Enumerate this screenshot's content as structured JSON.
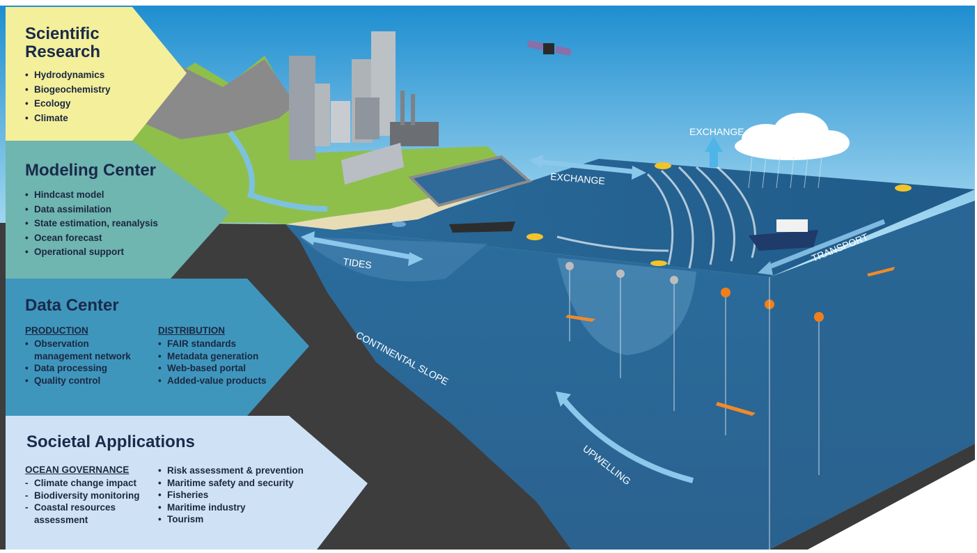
{
  "panels": {
    "scientific_research": {
      "title_line1": "Scientific",
      "title_line2": "Research",
      "items": [
        "Hydrodynamics",
        "Biogeochemistry",
        "Ecology",
        "Climate"
      ]
    },
    "modeling_center": {
      "title": "Modeling Center",
      "items": [
        "Hindcast model",
        "Data assimilation",
        "State estimation, reanalysis",
        "Ocean forecast",
        "Operational support"
      ]
    },
    "data_center": {
      "title": "Data Center",
      "production": {
        "heading": "PRODUCTION",
        "items": [
          "Observation management network",
          "Data processing",
          "Quality control"
        ]
      },
      "distribution": {
        "heading": "DISTRIBUTION",
        "items": [
          "FAIR standards",
          "Metadata generation",
          "Web-based portal",
          "Added-value products"
        ]
      }
    },
    "societal_applications": {
      "title": "Societal Applications",
      "ocean_governance": {
        "heading": "OCEAN GOVERNANCE",
        "items": [
          "Climate change impact",
          "Biodiversity monitoring",
          "Coastal resources assessment"
        ]
      },
      "other": {
        "items": [
          "Risk assessment  & prevention",
          "Maritime safety and security",
          "Fisheries",
          "Maritime industry",
          "Tourism"
        ]
      }
    }
  },
  "diagram_labels": {
    "exchange_top": "EXCHANGE",
    "exchange_mid": "EXCHANGE",
    "tides": "TIDES",
    "transport": "TRANSPORT",
    "continental_slope": "CONTINENTAL SLOPE",
    "upwelling": "UPWELLING"
  },
  "colors": {
    "scientific_research": "#f4ef9a",
    "modeling_center": "#6fb5b0",
    "data_center": "#3f96bd",
    "societal_applications": "#cfe2f5",
    "sky_top": "#1d8fd0",
    "sky_bottom": "#bfe6f7",
    "ocean_surface": "#1f5f8f",
    "ocean_deep": "#2b6a98",
    "seabed": "#3f3f3f"
  }
}
